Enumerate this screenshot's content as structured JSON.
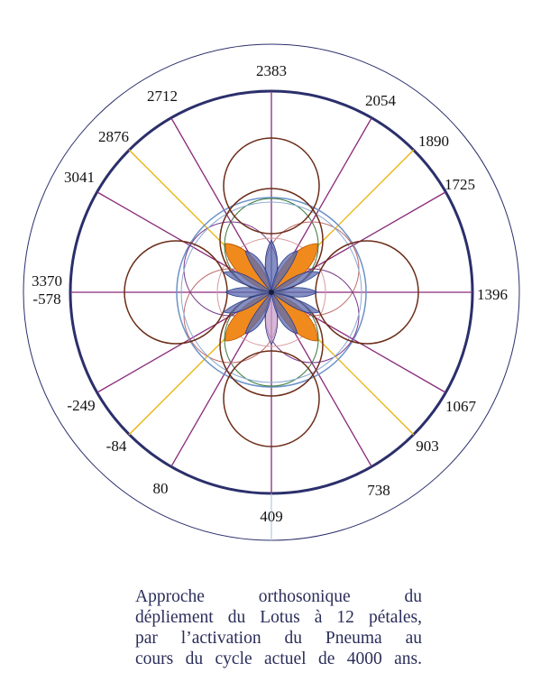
{
  "diagram": {
    "labels": {
      "l2383": "2383",
      "l2054": "2054",
      "l1890": "1890",
      "l1725": "1725",
      "l1396": "1396",
      "l1067": "1067",
      "l903": "903",
      "l738": "738",
      "l409": "409",
      "l80": "80",
      "lm84": "-84",
      "lm249": "-249",
      "l3370": "3370",
      "lm578": "-578",
      "l3041": "3041",
      "l2876": "2876",
      "l2712": "2712"
    },
    "colors": {
      "outer_ring": "#2b2f6b",
      "main_spokes": "#8a2a7a",
      "gold_spokes": "#e8b20a",
      "brown_circles": "#6b2d18",
      "blue_circle": "#6b93c9",
      "orange_petals": "#f08a1c",
      "blue_petals": "#2d3f8c"
    }
  },
  "caption": {
    "line1": "Approche orthosonique du",
    "line2": "dépliement du Lotus à 12 pétales,",
    "line3": "par l’activation du Pneuma au",
    "line4": "cours du cycle actuel de 4000 ans."
  }
}
